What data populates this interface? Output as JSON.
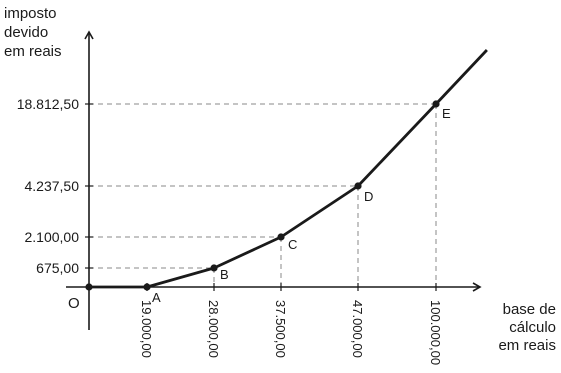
{
  "chart_data": {
    "type": "line",
    "ylabel": [
      "imposto",
      "devido",
      "em reais"
    ],
    "xlabel": [
      "base de",
      "cálculo",
      "em reais"
    ],
    "origin_label": "O",
    "grid": false,
    "reference_lines": "dashed",
    "x_ticks": [
      {
        "value": 19000,
        "label": "19.000,00"
      },
      {
        "value": 28000,
        "label": "28.000,00"
      },
      {
        "value": 37500,
        "label": "37.500,00"
      },
      {
        "value": 47000,
        "label": "47.000,00"
      },
      {
        "value": 100000,
        "label": "100.000,00"
      }
    ],
    "y_ticks": [
      {
        "value": 675,
        "label": "675,00"
      },
      {
        "value": 2100,
        "label": "2.100,00"
      },
      {
        "value": 4237.5,
        "label": "4.237,50"
      },
      {
        "value": 18812.5,
        "label": "18.812,50"
      }
    ],
    "points": [
      {
        "name": "O",
        "x": 0,
        "y": 0
      },
      {
        "name": "A",
        "x": 19000,
        "y": 0
      },
      {
        "name": "B",
        "x": 28000,
        "y": 675
      },
      {
        "name": "C",
        "x": 37500,
        "y": 2100
      },
      {
        "name": "D",
        "x": 47000,
        "y": 4237.5
      },
      {
        "name": "E",
        "x": 100000,
        "y": 18812.5
      }
    ],
    "line_extends_beyond": "E",
    "colors": {
      "line": "#1a1a1a",
      "dashed": "#8a8a8a",
      "axis": "#1a1a1a"
    }
  }
}
